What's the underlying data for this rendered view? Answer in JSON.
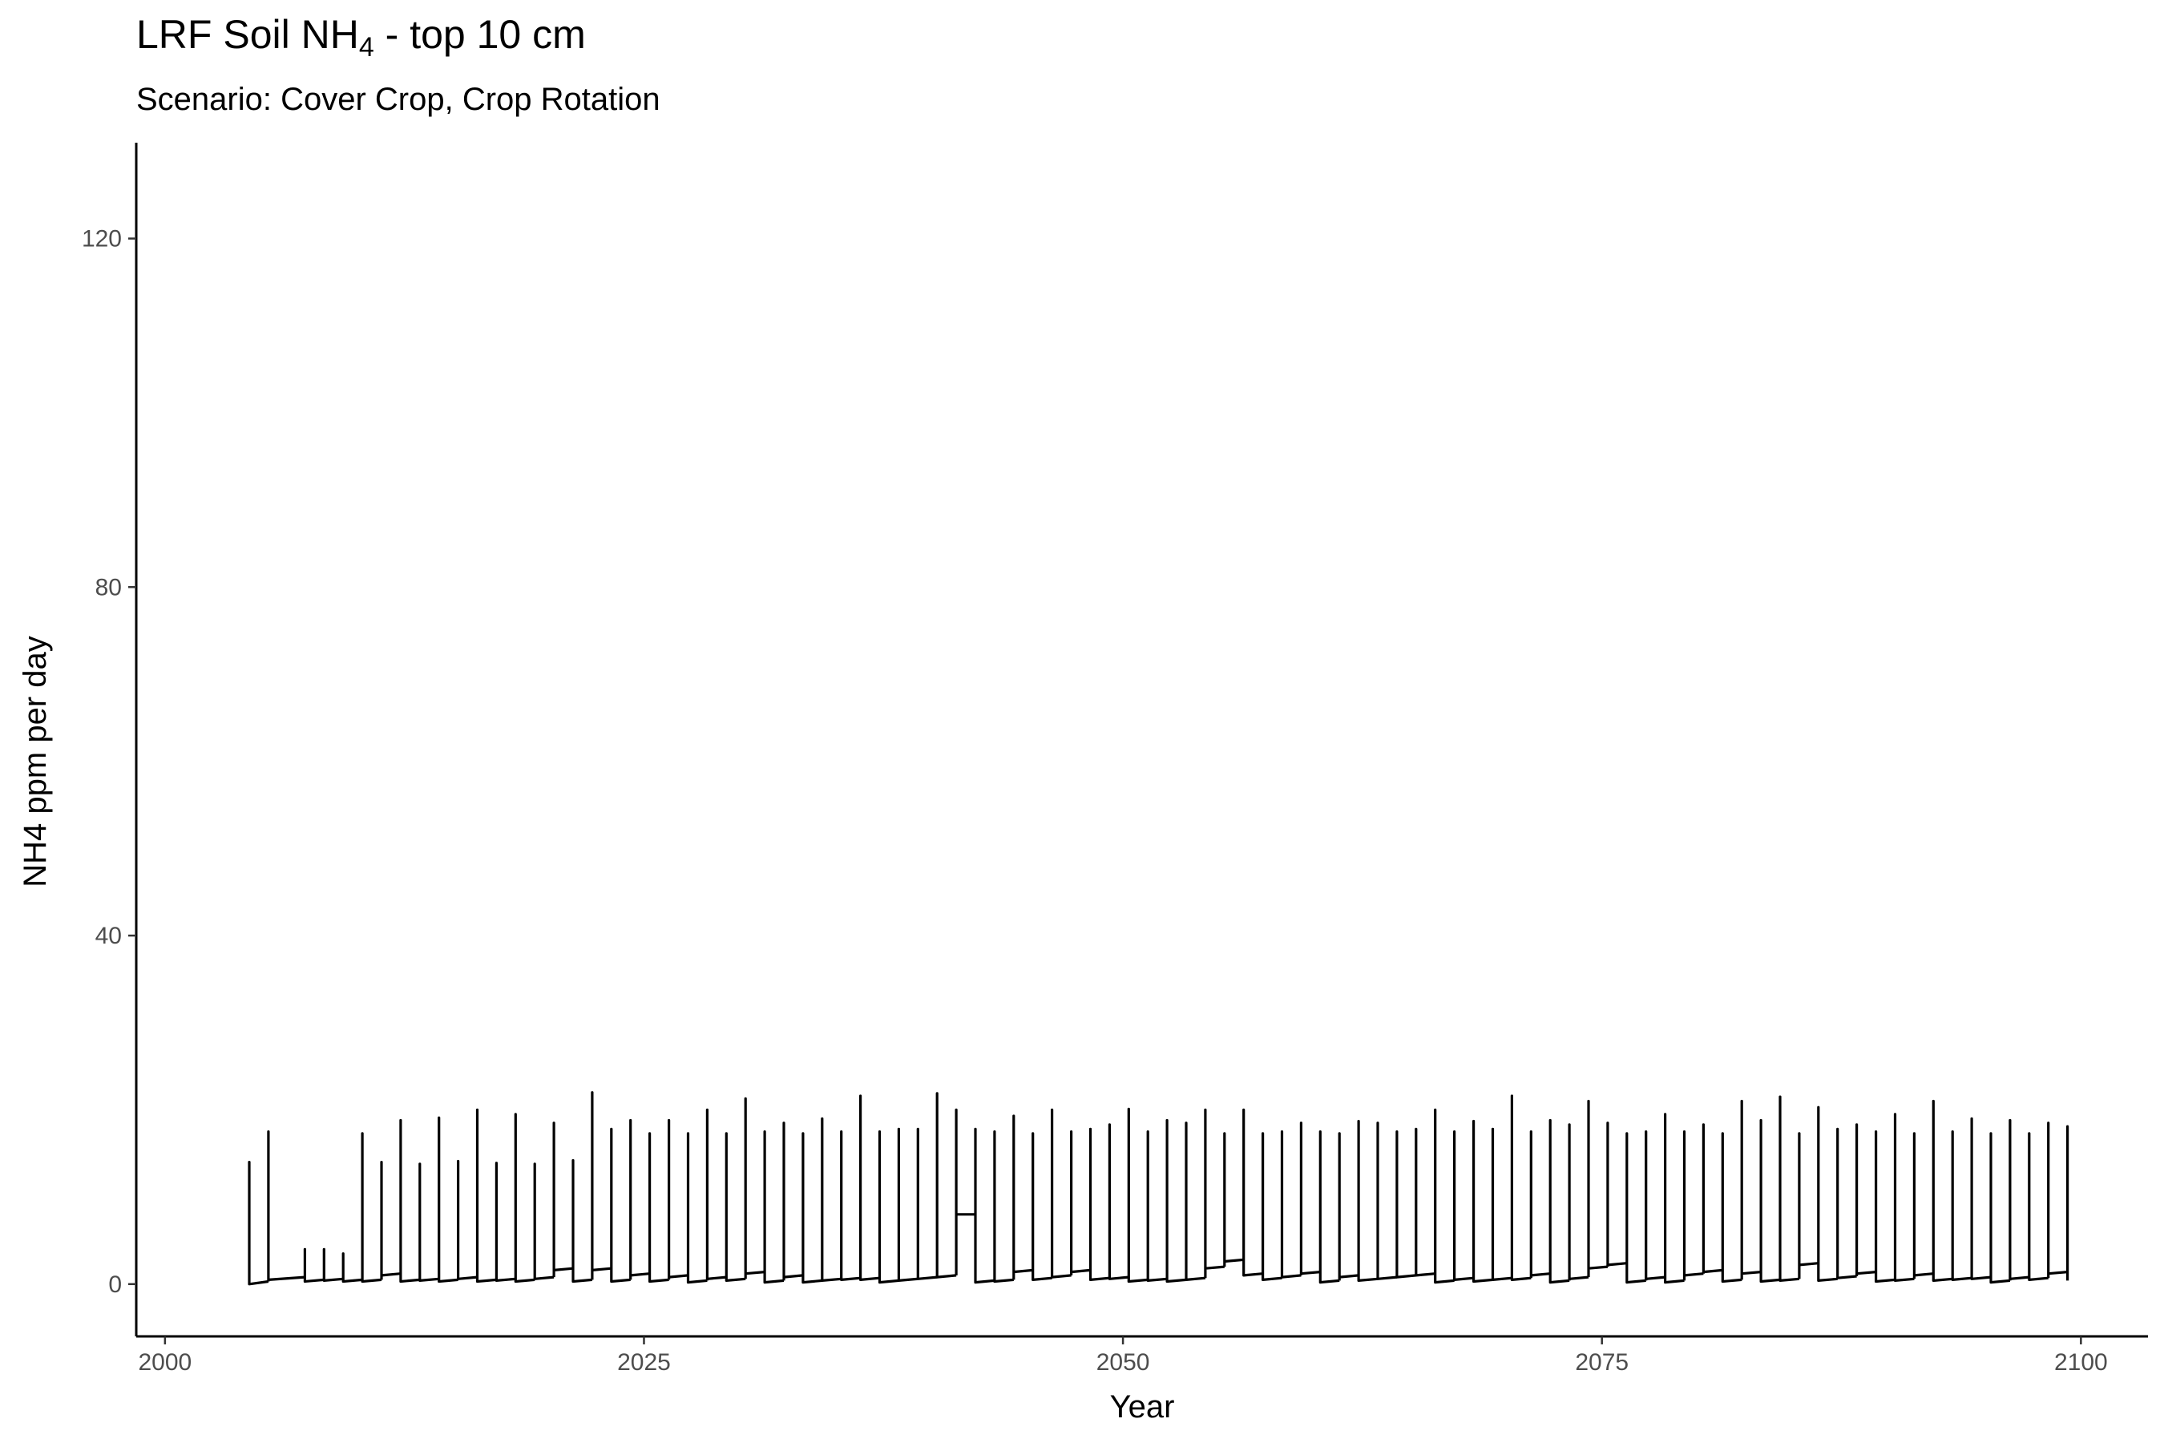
{
  "title": {
    "prefix": "LRF Soil NH",
    "sub": "4",
    "suffix": " - top 10 cm"
  },
  "subtitle": "Scenario: Cover Crop, Crop Rotation",
  "chart_data": {
    "type": "line",
    "title": "LRF Soil NH4 - top 10 cm",
    "subtitle": "Scenario: Cover Crop, Crop Rotation",
    "xlabel": "Year",
    "ylabel": "NH4 ppm per day",
    "xlim": [
      1998.5,
      2103.5
    ],
    "ylim": [
      -6,
      131
    ],
    "x_ticks": [
      2000,
      2025,
      2050,
      2075,
      2100
    ],
    "y_ticks": [
      0,
      40,
      80,
      120
    ],
    "grid": false,
    "legend": "none",
    "line_color": "#000000",
    "series": [
      {
        "description": "Daily soil NH4 concentration; sharp spike at each fertilizer application then rapid decay to a low baseline (approximate peaks read from chart)",
        "spike_years": [
          2004.4,
          2005.4,
          2007.3,
          2008.3,
          2009.3,
          2010.3,
          2011.3,
          2012.3,
          2013.3,
          2014.3,
          2015.3,
          2016.3,
          2017.3,
          2018.3,
          2019.3,
          2020.3,
          2021.3,
          2022.3,
          2023.3,
          2024.3,
          2025.3,
          2026.3,
          2027.3,
          2028.3,
          2029.3,
          2030.3,
          2031.3,
          2032.3,
          2033.3,
          2034.3,
          2035.3,
          2036.3,
          2037.3,
          2038.3,
          2039.3,
          2040.3,
          2041.3,
          2042.3,
          2043.3,
          2044.3,
          2045.3,
          2046.3,
          2047.3,
          2048.3,
          2049.3,
          2050.3,
          2051.3,
          2052.3,
          2053.3,
          2054.3,
          2055.3,
          2056.3,
          2057.3,
          2058.3,
          2059.3,
          2060.3,
          2061.3,
          2062.3,
          2063.3,
          2064.3,
          2065.3,
          2066.3,
          2067.3,
          2068.3,
          2069.3,
          2070.3,
          2071.3,
          2072.3,
          2073.3,
          2074.3,
          2075.3,
          2076.3,
          2077.3,
          2078.3,
          2079.3,
          2080.3,
          2081.3,
          2082.3,
          2083.3,
          2084.3,
          2085.3,
          2086.3,
          2087.3,
          2088.3,
          2089.3,
          2090.3,
          2091.3,
          2092.3,
          2093.3,
          2094.3,
          2095.3,
          2096.3,
          2097.3,
          2098.3,
          2099.3
        ],
        "spike_peaks": [
          14,
          17.5,
          4,
          4,
          3.5,
          17.3,
          14,
          18.8,
          13.8,
          19.1,
          14.1,
          20,
          13.9,
          19.5,
          13.8,
          18.5,
          14.2,
          22,
          17.8,
          18.8,
          17.3,
          18.8,
          17.3,
          20,
          17.3,
          21.3,
          17.5,
          18.5,
          17.3,
          19,
          17.5,
          21.6,
          17.5,
          17.8,
          17.8,
          21.9,
          20,
          17.8,
          17.5,
          19.3,
          17.3,
          20,
          17.5,
          17.8,
          18.3,
          20.1,
          17.5,
          18.8,
          18.5,
          20,
          17.3,
          20,
          17.3,
          17.5,
          18.5,
          17.5,
          17.3,
          18.7,
          18.5,
          17.5,
          17.8,
          20,
          17.5,
          18.7,
          17.8,
          21.6,
          17.5,
          18.8,
          18.3,
          21,
          18.5,
          17.3,
          17.5,
          19.5,
          17.5,
          18.3,
          17.3,
          21,
          18.8,
          21.5,
          17.3,
          20.3,
          17.8,
          18.3,
          17.5,
          19.5,
          17.3,
          21,
          17.5,
          19,
          17.3,
          18.8,
          17.3,
          18.5,
          18.1
        ],
        "baseline_start": [
          0,
          0.5,
          0.3,
          0.4,
          0.3,
          0.3,
          1.0,
          0.3,
          0.4,
          0.3,
          0.6,
          0.3,
          0.4,
          0.3,
          0.6,
          1.6,
          0.3,
          1.6,
          0.3,
          1.0,
          0.3,
          0.8,
          0.2,
          0.6,
          0.4,
          1.2,
          0.2,
          0.8,
          0.2,
          0.4,
          0.5,
          0.5,
          0.2,
          0.4,
          0.6,
          0.8,
          8.0,
          0.2,
          0.3,
          1.4,
          0.5,
          0.8,
          1.4,
          0.5,
          0.6,
          0.3,
          0.4,
          0.3,
          0.5,
          1.8,
          2.6,
          1.0,
          0.5,
          0.8,
          1.2,
          0.2,
          0.8,
          0.4,
          0.6,
          0.8,
          1.0,
          0.2,
          0.5,
          0.3,
          0.5,
          0.5,
          1.0,
          0.2,
          0.6,
          1.8,
          2.2,
          0.2,
          0.6,
          0.2,
          1.0,
          1.4,
          0.3,
          1.2,
          0.3,
          0.4,
          2.2,
          0.4,
          0.7,
          1.2,
          0.3,
          0.4,
          1.0,
          0.4,
          0.5,
          0.6,
          0.2,
          0.6,
          0.5,
          1.2,
          0.4
        ],
        "baseline_end": [
          0.3,
          0.8,
          0.5,
          0.6,
          0.5,
          0.5,
          1.2,
          0.5,
          0.6,
          0.5,
          0.8,
          0.5,
          0.6,
          0.5,
          0.8,
          1.8,
          0.5,
          1.8,
          0.5,
          1.2,
          0.5,
          1.0,
          0.4,
          0.8,
          0.6,
          1.4,
          0.4,
          1.0,
          0.4,
          0.6,
          0.7,
          0.7,
          0.4,
          0.6,
          0.8,
          1.0,
          8.0,
          0.4,
          0.5,
          1.6,
          0.7,
          1.0,
          1.6,
          0.7,
          0.8,
          0.5,
          0.6,
          0.5,
          0.7,
          2.0,
          2.8,
          1.2,
          0.7,
          1.0,
          1.4,
          0.4,
          1.0,
          0.6,
          0.8,
          1.0,
          1.2,
          0.4,
          0.7,
          0.5,
          0.7,
          0.7,
          1.2,
          0.4,
          0.8,
          2.0,
          2.4,
          0.4,
          0.8,
          0.4,
          1.2,
          1.6,
          0.5,
          1.4,
          0.5,
          0.6,
          2.4,
          0.6,
          0.9,
          1.4,
          0.5,
          0.6,
          1.2,
          0.6,
          0.7,
          0.8,
          0.4,
          0.8,
          0.7,
          1.4,
          0.6
        ]
      }
    ]
  }
}
